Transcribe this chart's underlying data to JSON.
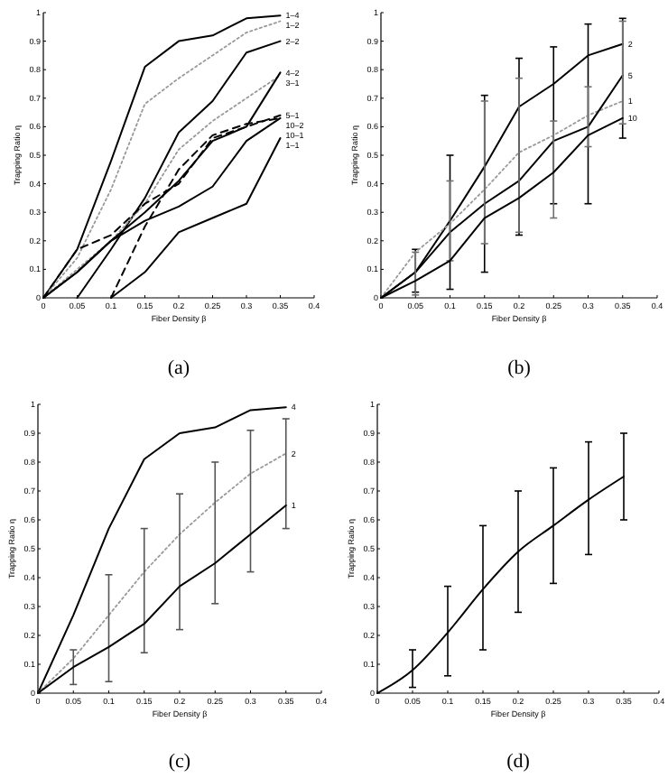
{
  "chart_data": [
    {
      "type": "line",
      "title": "(a)",
      "xlabel": "Fiber Density β",
      "ylabel": "Trapping Ratio η",
      "xlim": [
        0,
        0.4
      ],
      "ylim": [
        0,
        1
      ],
      "xticks": [
        0,
        0.05,
        0.1,
        0.15,
        0.2,
        0.25,
        0.3,
        0.35,
        0.4
      ],
      "yticks": [
        0,
        0.1,
        0.2,
        0.3,
        0.4,
        0.5,
        0.6,
        0.7,
        0.8,
        0.9,
        1
      ],
      "marker": "none",
      "series": [
        {
          "name": "1–4",
          "color": "#000000",
          "line_style": "solid",
          "x": [
            0,
            0.05,
            0.1,
            0.15,
            0.2,
            0.25,
            0.3,
            0.35
          ],
          "values": [
            0,
            0.17,
            0.48,
            0.81,
            0.9,
            0.92,
            0.98,
            0.99
          ]
        },
        {
          "name": "1–2",
          "color": "#999999",
          "line_style": "dotted",
          "x": [
            0,
            0.05,
            0.1,
            0.15,
            0.2,
            0.25,
            0.3,
            0.35
          ],
          "values": [
            0,
            0.14,
            0.38,
            0.68,
            0.77,
            0.85,
            0.93,
            0.97
          ]
        },
        {
          "name": "2–2",
          "color": "#000000",
          "line_style": "solid",
          "x": [
            0.05,
            0.1,
            0.15,
            0.2,
            0.25,
            0.3,
            0.35
          ],
          "values": [
            0,
            0.17,
            0.35,
            0.58,
            0.69,
            0.86,
            0.9
          ]
        },
        {
          "name": "3–1",
          "color": "#999999",
          "line_style": "dotted",
          "x": [
            0,
            0.05,
            0.1,
            0.15,
            0.2,
            0.25,
            0.3,
            0.35
          ],
          "values": [
            0,
            0.1,
            0.2,
            0.33,
            0.52,
            0.62,
            0.7,
            0.78
          ]
        },
        {
          "name": "4–2",
          "color": "#000000",
          "line_style": "solid",
          "x": [
            0,
            0.05,
            0.1,
            0.15,
            0.2,
            0.25,
            0.3,
            0.35
          ],
          "values": [
            0,
            0.09,
            0.2,
            0.3,
            0.41,
            0.55,
            0.6,
            0.79
          ]
        },
        {
          "name": "5–1",
          "color": "#000000",
          "line_style": "dashed",
          "x": [
            0,
            0.05,
            0.1,
            0.15,
            0.2,
            0.25,
            0.3,
            0.35
          ],
          "values": [
            0,
            0.17,
            0.22,
            0.33,
            0.4,
            0.56,
            0.6,
            0.64
          ]
        },
        {
          "name": "10–2",
          "color": "#000000",
          "line_style": "dashed",
          "x": [
            0.1,
            0.15,
            0.2,
            0.25,
            0.3,
            0.35
          ],
          "values": [
            0,
            0.25,
            0.45,
            0.57,
            0.61,
            0.63
          ]
        },
        {
          "name": "10–1",
          "color": "#000000",
          "line_style": "solid",
          "x": [
            0,
            0.05,
            0.1,
            0.15,
            0.2,
            0.25,
            0.3,
            0.35
          ],
          "values": [
            0,
            0.09,
            0.2,
            0.27,
            0.32,
            0.39,
            0.55,
            0.63
          ]
        },
        {
          "name": "1–1",
          "color": "#000000",
          "line_style": "solid",
          "x": [
            0.1,
            0.15,
            0.2,
            0.25,
            0.3,
            0.35
          ],
          "values": [
            0,
            0.09,
            0.23,
            0.28,
            0.33,
            0.56
          ]
        }
      ]
    },
    {
      "type": "line",
      "title": "(b)",
      "xlabel": "Fiber Density β",
      "ylabel": "Trapping Ratio η",
      "xlim": [
        0,
        0.4
      ],
      "ylim": [
        0,
        1
      ],
      "xticks": [
        0,
        0.05,
        0.1,
        0.15,
        0.2,
        0.25,
        0.3,
        0.35,
        0.4
      ],
      "yticks": [
        0,
        0.1,
        0.2,
        0.3,
        0.4,
        0.5,
        0.6,
        0.7,
        0.8,
        0.9,
        1
      ],
      "marker": "none",
      "x": [
        0,
        0.05,
        0.1,
        0.15,
        0.2,
        0.25,
        0.3,
        0.35
      ],
      "series": [
        {
          "name": "2",
          "color": "#000000",
          "line_style": "solid",
          "values": [
            0,
            0.09,
            0.27,
            0.46,
            0.67,
            0.75,
            0.85,
            0.89
          ],
          "errors": [
            null,
            [
              0.02,
              0.17
            ],
            [
              0.03,
              0.5
            ],
            [
              0.09,
              0.71
            ],
            [
              0.22,
              0.84
            ],
            [
              0.33,
              0.88
            ],
            [
              0.33,
              0.96
            ],
            [
              0.56,
              0.98
            ]
          ]
        },
        {
          "name": "1",
          "color": "#999999",
          "line_style": "dotted",
          "values": [
            0,
            0.16,
            0.26,
            0.38,
            0.51,
            0.57,
            0.64,
            0.69
          ]
        },
        {
          "name": "5",
          "color": "#000000",
          "line_style": "solid",
          "values": [
            0,
            0.09,
            0.23,
            0.33,
            0.41,
            0.55,
            0.6,
            0.78
          ],
          "errors": [
            null,
            [
              0.01,
              0.16
            ],
            [
              0.13,
              0.41
            ],
            [
              0.19,
              0.69
            ],
            [
              0.23,
              0.77
            ],
            [
              0.28,
              0.62
            ],
            [
              0.53,
              0.74
            ],
            [
              0.61,
              0.97
            ]
          ]
        },
        {
          "name": "10",
          "color": "#000000",
          "line_style": "solid",
          "values": [
            0,
            0.06,
            0.13,
            0.28,
            0.35,
            0.44,
            0.57,
            0.63
          ]
        }
      ]
    },
    {
      "type": "line",
      "title": "(c)",
      "xlabel": "Fiber Density β",
      "ylabel": "Trapping Ratio η",
      "xlim": [
        0,
        0.4
      ],
      "ylim": [
        0,
        1
      ],
      "xticks": [
        0,
        0.05,
        0.1,
        0.15,
        0.2,
        0.25,
        0.3,
        0.35,
        0.4
      ],
      "yticks": [
        0,
        0.1,
        0.2,
        0.3,
        0.4,
        0.5,
        0.6,
        0.7,
        0.8,
        0.9,
        1
      ],
      "marker": "none",
      "x": [
        0,
        0.05,
        0.1,
        0.15,
        0.2,
        0.25,
        0.3,
        0.35
      ],
      "series": [
        {
          "name": "4",
          "color": "#000000",
          "line_style": "solid",
          "values": [
            0,
            0.27,
            0.57,
            0.81,
            0.9,
            0.92,
            0.98,
            0.99
          ]
        },
        {
          "name": "2",
          "color": "#999999",
          "line_style": "dotted",
          "values": [
            0,
            0.12,
            0.27,
            0.42,
            0.55,
            0.66,
            0.76,
            0.83
          ],
          "errors": [
            null,
            [
              0.03,
              0.15
            ],
            [
              0.04,
              0.41
            ],
            [
              0.14,
              0.57
            ],
            [
              0.22,
              0.69
            ],
            [
              0.31,
              0.8
            ],
            [
              0.42,
              0.91
            ],
            [
              0.57,
              0.95
            ]
          ]
        },
        {
          "name": "1",
          "color": "#000000",
          "line_style": "solid",
          "values": [
            0,
            0.09,
            0.16,
            0.24,
            0.37,
            0.45,
            0.55,
            0.65
          ]
        }
      ]
    },
    {
      "type": "line",
      "title": "(d)",
      "xlabel": "Fiber Density β",
      "ylabel": "Trapping Ratio η",
      "xlim": [
        0,
        0.4
      ],
      "ylim": [
        0,
        1
      ],
      "xticks": [
        0,
        0.05,
        0.1,
        0.15,
        0.2,
        0.25,
        0.3,
        0.35,
        0.4
      ],
      "yticks": [
        0,
        0.1,
        0.2,
        0.3,
        0.4,
        0.5,
        0.6,
        0.7,
        0.8,
        0.9,
        1
      ],
      "marker": "none",
      "x": [
        0,
        0.05,
        0.1,
        0.15,
        0.2,
        0.25,
        0.3,
        0.35
      ],
      "series": [
        {
          "color": "#000000",
          "line_style": "solid",
          "values": [
            0,
            0.08,
            0.21,
            0.36,
            0.49,
            0.58,
            0.67,
            0.75
          ],
          "errors": [
            null,
            [
              0.02,
              0.15
            ],
            [
              0.06,
              0.37
            ],
            [
              0.15,
              0.58
            ],
            [
              0.28,
              0.7
            ],
            [
              0.38,
              0.78
            ],
            [
              0.48,
              0.87
            ],
            [
              0.6,
              0.9
            ]
          ]
        }
      ]
    }
  ]
}
